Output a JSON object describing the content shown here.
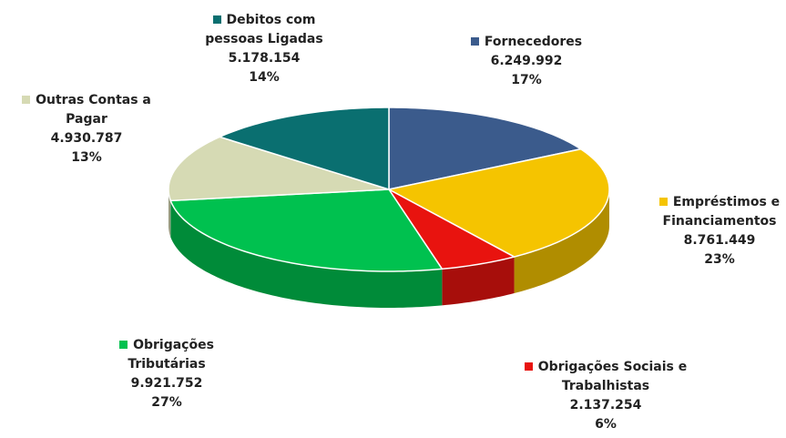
{
  "chart_data": {
    "type": "pie",
    "categories": [
      "Fornecedores",
      "Empréstimos e Financiamentos",
      "Obrigações Sociais e Trabalhistas",
      "Obrigações Tributárias",
      "Outras Contas a Pagar",
      "Debitos com pessoas Ligadas"
    ],
    "values": [
      6249992,
      8761449,
      2137254,
      9921752,
      4930787,
      5178154
    ],
    "value_labels": [
      "6.249.992",
      "8.761.449",
      "2.137.254",
      "9.921.752",
      "4.930.787",
      "5.178.154"
    ],
    "percents": [
      17,
      23,
      6,
      27,
      13,
      14
    ],
    "percent_labels": [
      "17%",
      "23%",
      "6%",
      "27%",
      "13%",
      "14%"
    ],
    "colors": [
      "#3b5b8c",
      "#f5c400",
      "#e8130f",
      "#00c14f",
      "#d6dab4",
      "#0a6f70"
    ]
  }
}
